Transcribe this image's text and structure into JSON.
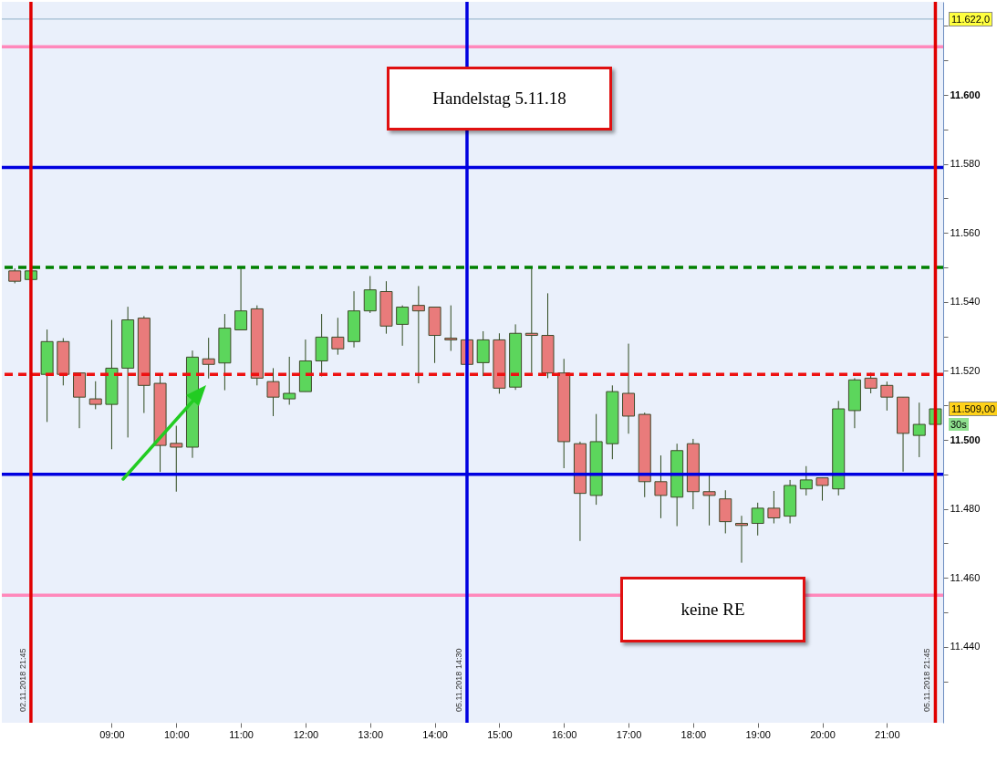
{
  "chart_data": {
    "type": "candlestick",
    "x": [
      7.5,
      7.75,
      8,
      8.25,
      8.5,
      8.75,
      9,
      9.25,
      9.5,
      9.75,
      10,
      10.25,
      10.5,
      10.75,
      11,
      11.25,
      11.5,
      11.75,
      12,
      12.25,
      12.5,
      12.75,
      13,
      13.25,
      13.5,
      13.75,
      14,
      14.25,
      14.5,
      14.75,
      15,
      15.25,
      15.5,
      15.75,
      16,
      16.25,
      16.5,
      16.75,
      17,
      17.25,
      17.5,
      17.75,
      18,
      18.25,
      18.5,
      18.75,
      19,
      19.25,
      19.5,
      19.75,
      20,
      20.25,
      20.5,
      20.75,
      21,
      21.25,
      21.5,
      21.75
    ],
    "ohlc": [
      [
        11549,
        11549.7,
        11545.4,
        11546
      ],
      [
        11546.5,
        11549.5,
        11546,
        11549
      ],
      [
        11519,
        11532,
        11505.2,
        11528.5
      ],
      [
        11528.5,
        11529.5,
        11515.8,
        11519
      ],
      [
        11519.4,
        11519.4,
        11503.4,
        11512.4
      ],
      [
        11511.9,
        11517,
        11508.9,
        11510.3
      ],
      [
        11510.3,
        11534.8,
        11497.3,
        11520.8
      ],
      [
        11520.8,
        11538.6,
        11500.7,
        11534.8
      ],
      [
        11535.3,
        11535.9,
        11507.8,
        11515.8
      ],
      [
        11516.4,
        11519,
        11490.7,
        11498.4
      ],
      [
        11499,
        11504.1,
        11485,
        11497.9
      ],
      [
        11497.9,
        11525.9,
        11494.8,
        11524
      ],
      [
        11523.5,
        11529.6,
        11517.8,
        11521.9
      ],
      [
        11522.3,
        11536.5,
        11514.4,
        11532.4
      ],
      [
        11531.9,
        11549.7,
        11531.9,
        11537.4
      ],
      [
        11538,
        11539,
        11515.8,
        11517.9
      ],
      [
        11516.9,
        11520.8,
        11506.9,
        11512.4
      ],
      [
        11511.9,
        11524.1,
        11510.2,
        11513.5
      ],
      [
        11514,
        11529.1,
        11514,
        11522.9
      ],
      [
        11522.9,
        11536.5,
        11518.4,
        11529.8
      ],
      [
        11529.8,
        11535.4,
        11524.7,
        11526.4
      ],
      [
        11528.5,
        11543.1,
        11526.8,
        11537.4
      ],
      [
        11537.4,
        11547.5,
        11536.8,
        11543.5
      ],
      [
        11543,
        11546,
        11530.8,
        11533
      ],
      [
        11533.5,
        11539,
        11527.3,
        11538.5
      ],
      [
        11539,
        11544.6,
        11516.4,
        11537.4
      ],
      [
        11538.5,
        11538.5,
        11522.3,
        11530.3
      ],
      [
        11529.5,
        11539,
        11525.8,
        11529
      ],
      [
        11529,
        11529,
        11521.9,
        11521.9
      ],
      [
        11522.4,
        11531.5,
        11518.5,
        11529
      ],
      [
        11529,
        11530.9,
        11513.4,
        11515
      ],
      [
        11515.3,
        11533.5,
        11514.5,
        11530.9
      ],
      [
        11530.9,
        11549.7,
        11519.4,
        11530.3
      ],
      [
        11530.3,
        11542.5,
        11517.9,
        11519.4
      ],
      [
        11519.4,
        11523.5,
        11491.8,
        11499.5
      ],
      [
        11498.9,
        11499.5,
        11470.7,
        11484.5
      ],
      [
        11483.9,
        11507.5,
        11481.2,
        11499.5
      ],
      [
        11498.9,
        11515.8,
        11494.4,
        11514
      ],
      [
        11513.5,
        11527.9,
        11501.8,
        11506.9
      ],
      [
        11507.4,
        11507.9,
        11483.4,
        11487.9
      ],
      [
        11487.9,
        11495.5,
        11477.3,
        11483.9
      ],
      [
        11483.4,
        11498.9,
        11475,
        11496.9
      ],
      [
        11498.9,
        11500.3,
        11479.9,
        11485
      ],
      [
        11485,
        11489.7,
        11475.2,
        11483.9
      ],
      [
        11482.9,
        11485.4,
        11472.9,
        11476.3
      ],
      [
        11475.8,
        11478,
        11464.4,
        11475.2
      ],
      [
        11475.8,
        11481.8,
        11472.3,
        11480.2
      ],
      [
        11480.2,
        11485.2,
        11475.8,
        11477.4
      ],
      [
        11477.9,
        11488.4,
        11475.8,
        11486.8
      ],
      [
        11485.8,
        11492.4,
        11483.9,
        11488.4
      ],
      [
        11489,
        11489,
        11482.4,
        11486.8
      ],
      [
        11485.8,
        11511.3,
        11483.9,
        11509
      ],
      [
        11508.5,
        11517.9,
        11503.4,
        11517.4
      ],
      [
        11517.9,
        11519.5,
        11513.5,
        11515
      ],
      [
        11515.8,
        11516.9,
        11508.5,
        11512.4
      ],
      [
        11512.4,
        11512.4,
        11490.8,
        11501.9
      ],
      [
        11501.3,
        11510.8,
        11495,
        11504.5
      ],
      [
        11504.5,
        11509,
        11504.5,
        11509
      ]
    ],
    "colors": [
      "#e97b7b",
      "#5cd65c",
      "#5cd65c",
      "#e97b7b",
      "#e97b7b",
      "#e97b7b",
      "#5cd65c",
      "#5cd65c",
      "#e97b7b",
      "#e97b7b",
      "#e97b7b",
      "#5cd65c",
      "#e97b7b",
      "#5cd65c",
      "#5cd65c",
      "#e97b7b",
      "#e97b7b",
      "#5cd65c",
      "#5cd65c",
      "#5cd65c",
      "#e97b7b",
      "#5cd65c",
      "#5cd65c",
      "#e97b7b",
      "#5cd65c",
      "#e97b7b",
      "#e97b7b",
      "#e97b7b",
      "#e97b7b",
      "#5cd65c",
      "#e97b7b",
      "#5cd65c",
      "#e97b7b",
      "#e97b7b",
      "#e97b7b",
      "#e97b7b",
      "#5cd65c",
      "#5cd65c",
      "#e97b7b",
      "#e97b7b",
      "#e97b7b",
      "#5cd65c",
      "#e97b7b",
      "#e97b7b",
      "#e97b7b",
      "#e97b7b",
      "#5cd65c",
      "#e97b7b",
      "#5cd65c",
      "#5cd65c",
      "#e97b7b",
      "#5cd65c",
      "#5cd65c",
      "#e97b7b",
      "#e97b7b",
      "#e97b7b",
      "#5cd65c",
      "#5cd65c"
    ],
    "xlim": [
      7.37,
      21.8
    ],
    "xticks": [
      {
        "value": 9,
        "label": "09:00"
      },
      {
        "value": 10,
        "label": "10:00"
      },
      {
        "value": 11,
        "label": "11:00"
      },
      {
        "value": 12,
        "label": "12:00"
      },
      {
        "value": 13,
        "label": "13:00"
      },
      {
        "value": 14,
        "label": "14:00"
      },
      {
        "value": 15,
        "label": "15:00"
      },
      {
        "value": 16,
        "label": "16:00"
      },
      {
        "value": 17,
        "label": "17:00"
      },
      {
        "value": 18,
        "label": "18:00"
      },
      {
        "value": 19,
        "label": "19:00"
      },
      {
        "value": 20,
        "label": "20:00"
      },
      {
        "value": 21,
        "label": "21:00"
      }
    ],
    "ylim": [
      11418,
      11627
    ],
    "yticks": [
      {
        "value": 11430,
        "label": null
      },
      {
        "value": 11440,
        "label": "11.440"
      },
      {
        "value": 11450,
        "label": null
      },
      {
        "value": 11460,
        "label": "11.460"
      },
      {
        "value": 11470,
        "label": null
      },
      {
        "value": 11480,
        "label": "11.480"
      },
      {
        "value": 11490,
        "label": null
      },
      {
        "value": 11500,
        "label": "11.500"
      },
      {
        "value": 11510,
        "label": null
      },
      {
        "value": 11520,
        "label": "11.520"
      },
      {
        "value": 11530,
        "label": null
      },
      {
        "value": 11540,
        "label": "11.540"
      },
      {
        "value": 11550,
        "label": null
      },
      {
        "value": 11560,
        "label": "11.560"
      },
      {
        "value": 11570,
        "label": null
      },
      {
        "value": 11580,
        "label": "11.580"
      },
      {
        "value": 11590,
        "label": null
      },
      {
        "value": 11600,
        "label": "11.600"
      },
      {
        "value": 11610,
        "label": null
      },
      {
        "value": 11620,
        "label": null
      }
    ],
    "ref_lines": [
      {
        "axis": "y",
        "value": 11614,
        "color": "#ff88bb"
      },
      {
        "axis": "y",
        "value": 11579,
        "color": "#0000e0"
      },
      {
        "axis": "y",
        "value": 11550,
        "color": "#008000",
        "line_style": "dashed"
      },
      {
        "axis": "y",
        "value": 11519,
        "color": "#ee1111",
        "line_style": "dashed"
      },
      {
        "axis": "y",
        "value": 11490,
        "color": "#0000e0"
      },
      {
        "axis": "y",
        "value": 11455,
        "color": "#ff88bb"
      },
      {
        "axis": "y",
        "value": 11622,
        "color": "#8fb0c8",
        "label": "11.622,0"
      },
      {
        "axis": "x",
        "value": 7.75,
        "color": "#e00000"
      },
      {
        "axis": "x",
        "value": 14.5,
        "color": "#0000e0"
      },
      {
        "axis": "x",
        "value": 21.75,
        "color": "#e00000"
      }
    ],
    "annotations": [
      "Handelstag 5.11.18",
      "keine RE",
      "30s",
      "11.509,00",
      "02.11.2018 21:45",
      "05.11.2018 14:30",
      "05.11.2018 21:45"
    ],
    "grid": false
  }
}
